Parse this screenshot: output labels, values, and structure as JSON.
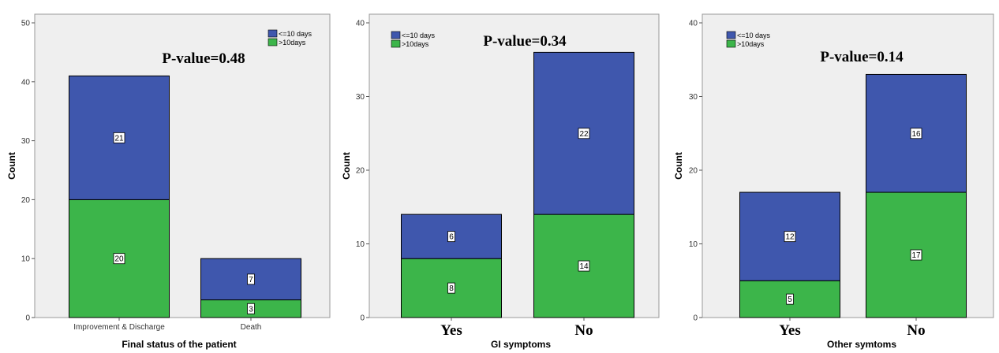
{
  "colors": {
    "le10": "#3f57ad",
    "gt10": "#3cb54a",
    "plot_bg": "#efefef",
    "border": "#9a9a9a"
  },
  "chart_data": [
    {
      "type": "bar",
      "stacked": true,
      "xlabel": "Final status of the patient",
      "ylabel": "Count",
      "ylim": [
        0,
        50
      ],
      "yticks": [
        0,
        10,
        20,
        30,
        40,
        50
      ],
      "annotation": "P-value=0.48",
      "category_style": "small",
      "categories": [
        "Improvement & Discharge",
        "Death"
      ],
      "series": [
        {
          "name": ">10days",
          "values": [
            20,
            3
          ]
        },
        {
          "name": "<=10 days",
          "values": [
            21,
            7
          ]
        }
      ],
      "legend": "top-right",
      "grid": false
    },
    {
      "type": "bar",
      "stacked": true,
      "xlabel": "GI symptoms",
      "ylabel": "Count",
      "ylim": [
        0,
        40
      ],
      "yticks": [
        0,
        10,
        20,
        30,
        40
      ],
      "annotation": "P-value=0.34",
      "category_style": "big",
      "categories": [
        "Yes",
        "No"
      ],
      "series": [
        {
          "name": ">10days",
          "values": [
            8,
            14
          ]
        },
        {
          "name": "<=10 days",
          "values": [
            6,
            22
          ]
        }
      ],
      "legend": "top-left",
      "grid": false
    },
    {
      "type": "bar",
      "stacked": true,
      "xlabel": "Other symtoms",
      "ylabel": "Count",
      "ylim": [
        0,
        40
      ],
      "yticks": [
        0,
        10,
        20,
        30,
        40
      ],
      "annotation": "P-value=0.14",
      "category_style": "big",
      "categories": [
        "Yes",
        "No"
      ],
      "series": [
        {
          "name": ">10days",
          "values": [
            5,
            17
          ]
        },
        {
          "name": "<=10 days",
          "values": [
            12,
            16
          ]
        }
      ],
      "legend": "top-left",
      "grid": false
    }
  ]
}
